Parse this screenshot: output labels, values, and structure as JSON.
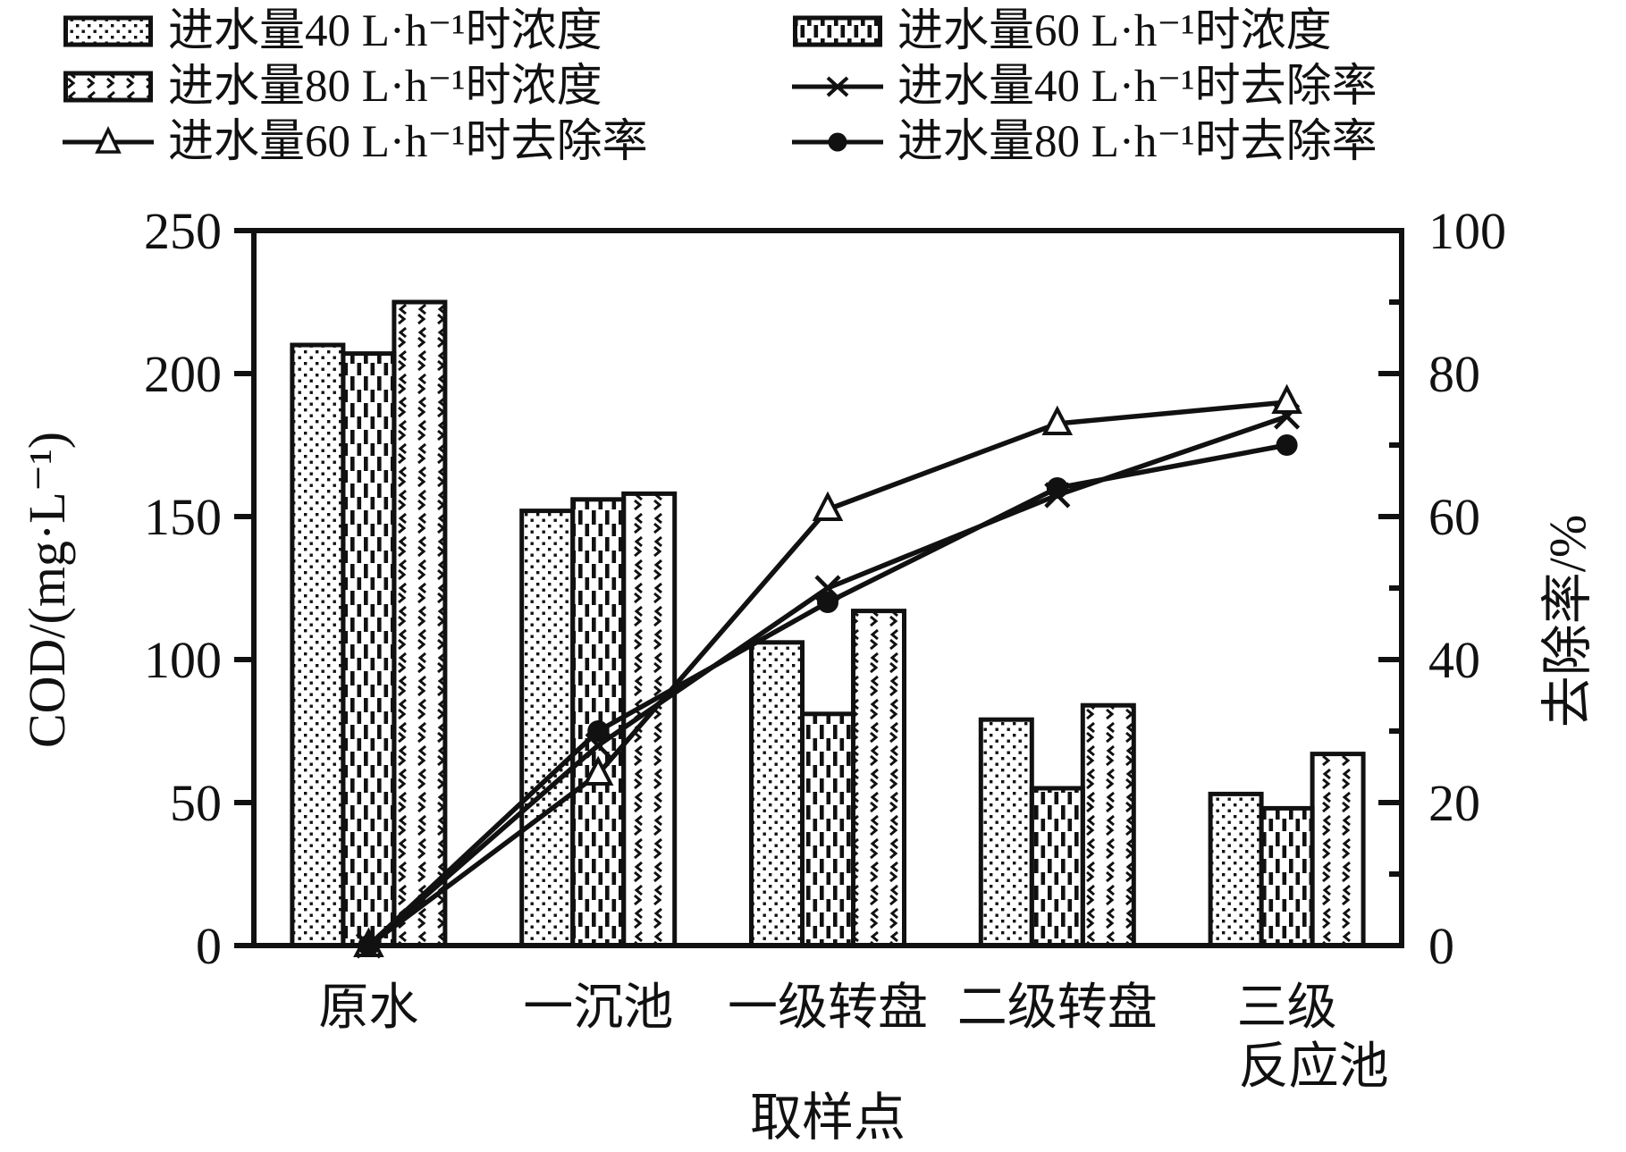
{
  "figure": {
    "background": "#ffffff",
    "ink": "#111111"
  },
  "legend": {
    "position": "top",
    "items": [
      {
        "label": "进水量40 L·h⁻¹时浓度",
        "swatch": "bar-dots"
      },
      {
        "label": "进水量60 L·h⁻¹时浓度",
        "swatch": "bar-dashes"
      },
      {
        "label": "进水量80 L·h⁻¹时浓度",
        "swatch": "bar-chevrons"
      },
      {
        "label": "进水量40 L·h⁻¹时去除率",
        "swatch": "line-x"
      },
      {
        "label": "进水量60 L·h⁻¹时去除率",
        "swatch": "line-triangle"
      },
      {
        "label": "进水量80 L·h⁻¹时去除率",
        "swatch": "line-dot"
      }
    ]
  },
  "chart_data": {
    "type": "bar+line",
    "categories": [
      "原水",
      "一沉池",
      "一级转盘",
      "二级转盘",
      "三级\n反应池"
    ],
    "bar_series": [
      {
        "name": "cod-40",
        "legend": "进水量40 L·h⁻¹时浓度",
        "pattern": "dots",
        "axis": "left",
        "values": [
          210,
          152,
          106,
          79,
          53
        ]
      },
      {
        "name": "cod-60",
        "legend": "进水量60 L·h⁻¹时浓度",
        "pattern": "dashes",
        "axis": "left",
        "values": [
          207,
          156,
          81,
          55,
          48
        ]
      },
      {
        "name": "cod-80",
        "legend": "进水量80 L·h⁻¹时浓度",
        "pattern": "chevrons",
        "axis": "left",
        "values": [
          225,
          158,
          117,
          84,
          67
        ]
      }
    ],
    "line_series": [
      {
        "name": "removal-40",
        "legend": "进水量40 L·h⁻¹时去除率",
        "marker": "x",
        "axis": "right",
        "values": [
          0,
          28,
          50,
          63,
          74
        ]
      },
      {
        "name": "removal-60",
        "legend": "进水量60 L·h⁻¹时去除率",
        "marker": "triangle",
        "axis": "right",
        "values": [
          0,
          24,
          61,
          73,
          76
        ]
      },
      {
        "name": "removal-80",
        "legend": "进水量80 L·h⁻¹时去除率",
        "marker": "dot",
        "axis": "right",
        "values": [
          0,
          30,
          48,
          64,
          70
        ]
      }
    ],
    "left_axis": {
      "title": "COD/(mg·L⁻¹)",
      "min": 0,
      "max": 250,
      "tick_step": 50,
      "tick_labels": [
        "0",
        "50",
        "100",
        "150",
        "200",
        "250"
      ]
    },
    "right_axis": {
      "title": "去除率/%",
      "min": 0,
      "max": 100,
      "major_step": 20,
      "minor_step": 10,
      "tick_labels": [
        "0",
        "20",
        "40",
        "60",
        "80",
        "100"
      ]
    },
    "x_axis": {
      "title": "取样点"
    },
    "grid": false,
    "legend_position": "top"
  }
}
